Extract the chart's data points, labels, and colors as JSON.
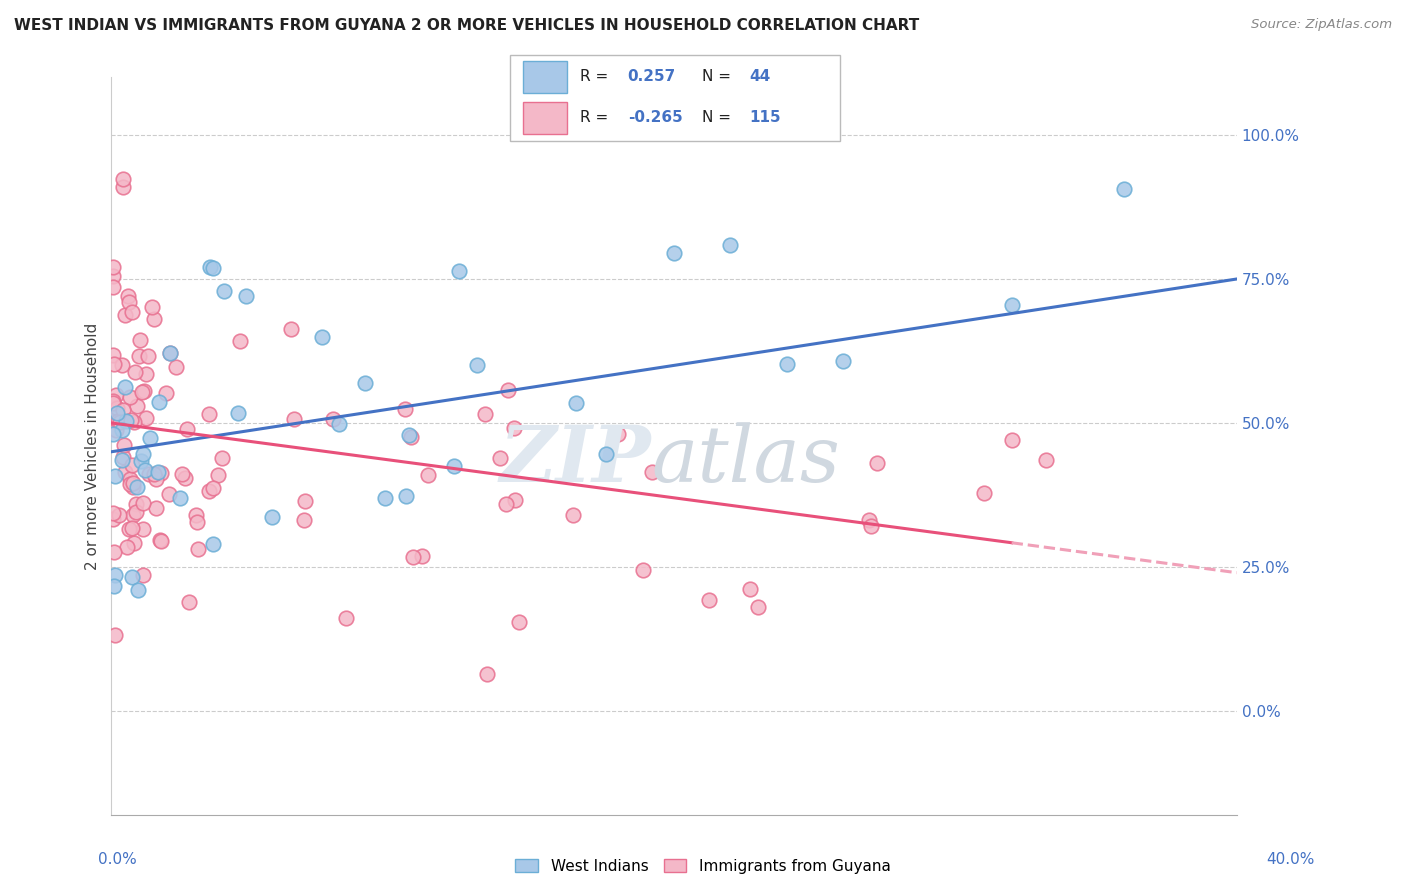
{
  "title": "WEST INDIAN VS IMMIGRANTS FROM GUYANA 2 OR MORE VEHICLES IN HOUSEHOLD CORRELATION CHART",
  "source": "Source: ZipAtlas.com",
  "ylabel": "2 or more Vehicles in Household",
  "ytick_vals": [
    0.0,
    25.0,
    50.0,
    75.0,
    100.0
  ],
  "xmin": 0.0,
  "xmax": 40.0,
  "ymin": -18.0,
  "ymax": 110.0,
  "blue_color": "#a8c8e8",
  "blue_edge_color": "#6baed6",
  "pink_color": "#f4b8c8",
  "pink_edge_color": "#e87090",
  "blue_line_color": "#4472c4",
  "pink_line_color": "#e8507a",
  "pink_dashed_color": "#f0a0b8",
  "blue_r": 0.257,
  "blue_n": 44,
  "pink_r": -0.265,
  "pink_n": 115,
  "blue_intercept": 45.0,
  "blue_slope": 0.75,
  "pink_intercept": 50.0,
  "pink_slope": -0.65,
  "pink_solid_end": 32.0
}
